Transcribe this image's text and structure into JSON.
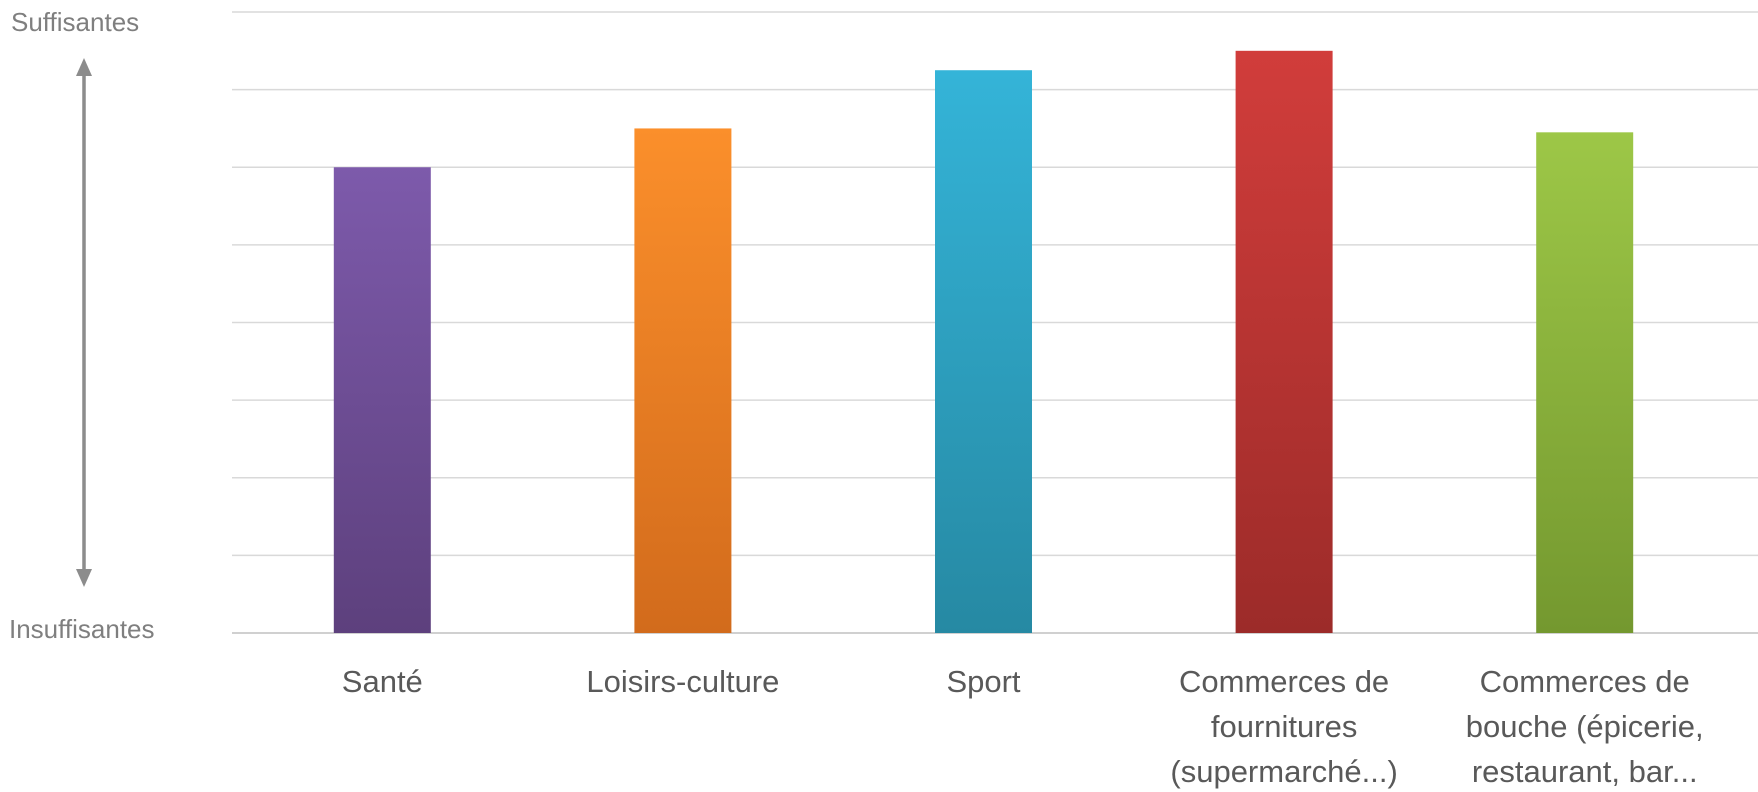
{
  "chart_data": {
    "type": "bar",
    "categories": [
      [
        "Santé"
      ],
      [
        "Loisirs-culture"
      ],
      [
        "Sport"
      ],
      [
        "Commerces de",
        "fournitures",
        "(supermarché...)"
      ],
      [
        "Commerces de",
        "bouche (épicerie,",
        "restaurant, bar..."
      ]
    ],
    "values": [
      6.0,
      6.5,
      7.25,
      7.5,
      6.45
    ],
    "ylim": [
      0,
      8
    ],
    "grid": true,
    "y_axis_arrow": {
      "top_label": "Suffisantes",
      "bottom_label": "Insuffisantes"
    },
    "colors": [
      {
        "top": "#7d5aab",
        "bottom": "#5d407d"
      },
      {
        "top": "#fb8f2b",
        "bottom": "#d26b1c"
      },
      {
        "top": "#34b4d8",
        "bottom": "#2689a3"
      },
      {
        "top": "#d13d3b",
        "bottom": "#9c2b29"
      },
      {
        "top": "#9dc747",
        "bottom": "#74982f"
      }
    ],
    "gridline_color": "#d9d9d9",
    "arrow_color": "#8c8c8c"
  }
}
